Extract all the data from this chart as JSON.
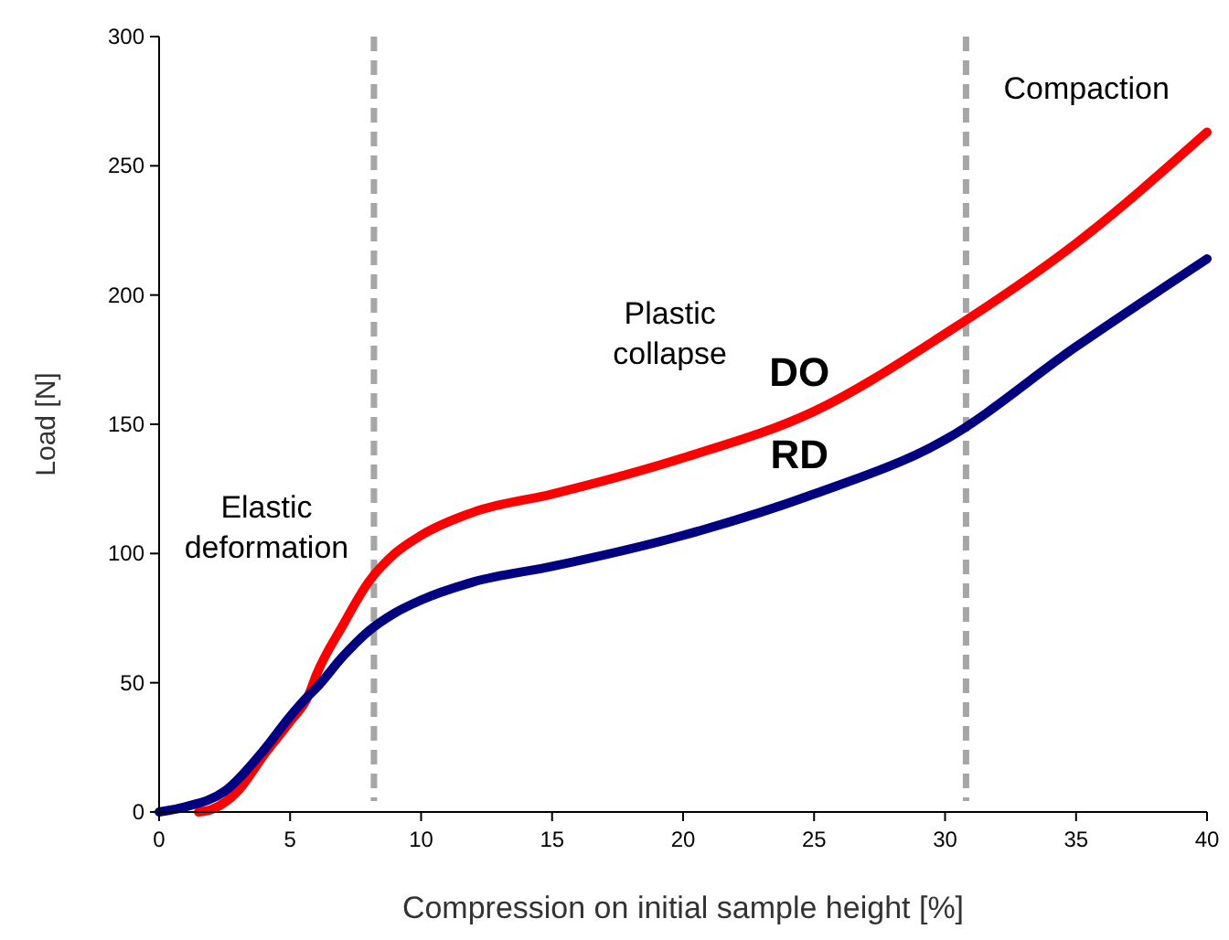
{
  "chart_data": {
    "type": "line",
    "xlabel": "Compression on initial sample height [%]",
    "ylabel": "Load [N]",
    "xlim": [
      0,
      40
    ],
    "ylim": [
      0,
      300
    ],
    "xticks": [
      0,
      5,
      10,
      15,
      20,
      25,
      30,
      35,
      40
    ],
    "yticks": [
      0,
      50,
      100,
      150,
      200,
      250,
      300
    ],
    "grid": false,
    "marker": "none",
    "line_style": "solid",
    "series": [
      {
        "name": "DO",
        "color": "#ff0000",
        "x": [
          1.5,
          2,
          3,
          4,
          5,
          5.7,
          6,
          7,
          8,
          9,
          10,
          12,
          15,
          20,
          25,
          30,
          35,
          40
        ],
        "values": [
          0,
          1,
          8,
          22,
          35,
          45,
          53,
          72,
          89,
          100,
          107,
          116,
          123,
          137,
          155,
          185,
          220,
          263
        ]
      },
      {
        "name": "RD",
        "color": "#000080",
        "x": [
          0,
          1,
          2.5,
          4,
          5,
          5.7,
          6,
          7,
          8,
          9,
          10,
          12,
          15,
          20,
          25,
          30,
          35,
          40
        ],
        "values": [
          0,
          2,
          8,
          24,
          37,
          45,
          48,
          60,
          70,
          77,
          82,
          89,
          95,
          107,
          123,
          144,
          180,
          214
        ]
      }
    ],
    "ref_lines": [
      {
        "axis": "x",
        "value": 8.2,
        "color": "#a6a6a6",
        "line_style": "dashed"
      },
      {
        "axis": "x",
        "value": 30.8,
        "color": "#a6a6a6",
        "line_style": "dashed"
      }
    ],
    "annotations": [
      "Elastic\ndeformation",
      "Plastic\ncollapse",
      "Compaction"
    ]
  }
}
